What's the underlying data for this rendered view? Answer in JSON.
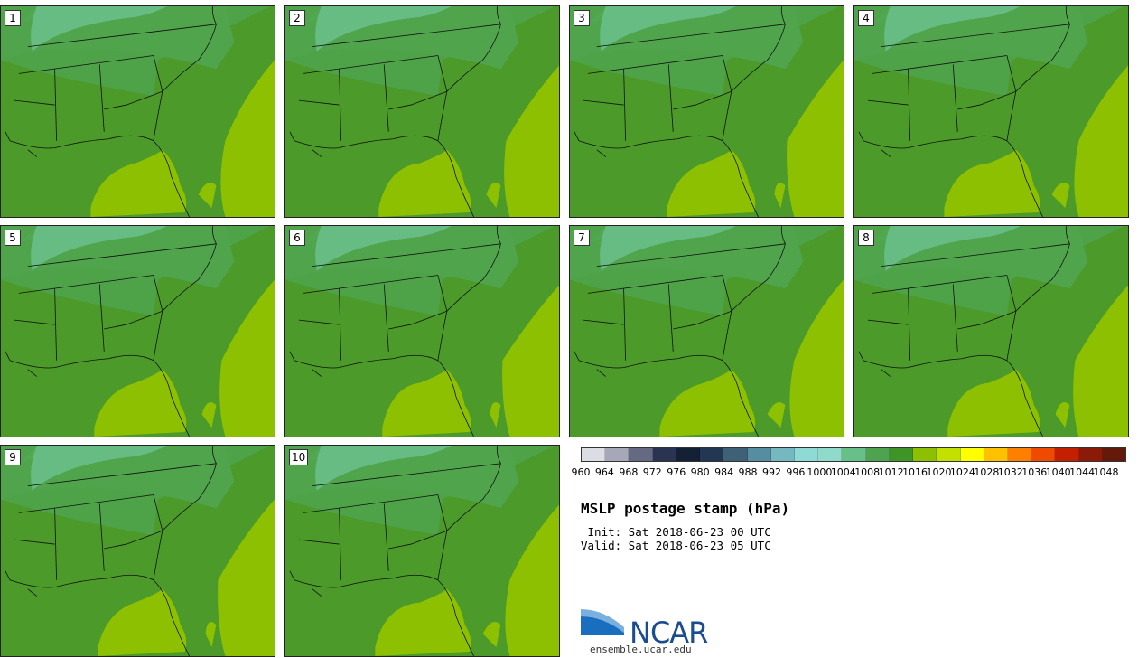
{
  "panels": [
    {
      "label": "1"
    },
    {
      "label": "2"
    },
    {
      "label": "3"
    },
    {
      "label": "4"
    },
    {
      "label": "5"
    },
    {
      "label": "6"
    },
    {
      "label": "7"
    },
    {
      "label": "8"
    },
    {
      "label": "9"
    },
    {
      "label": "10"
    }
  ],
  "legend": {
    "colors": [
      "#dcdde4",
      "#a6a8b8",
      "#656a82",
      "#2a3452",
      "#142035",
      "#223752",
      "#3e6178",
      "#558ea0",
      "#75b8c0",
      "#8fdad4",
      "#8fdacb",
      "#66c088",
      "#4ea250",
      "#3f9428",
      "#8cc000",
      "#c4e000",
      "#ffff00",
      "#ffc000",
      "#ff8000",
      "#ee4a00",
      "#c42000",
      "#8c1a08",
      "#641a0a"
    ],
    "ticks": [
      "960",
      "964",
      "968",
      "972",
      "976",
      "980",
      "984",
      "988",
      "992",
      "996",
      "1000",
      "1004",
      "1008",
      "1012",
      "1016",
      "1020",
      "1024",
      "1028",
      "1032",
      "1036",
      "1040",
      "1044",
      "1048"
    ]
  },
  "map_colors": {
    "sea_low": "#4b9a2a",
    "land_mid": "#4fa44c",
    "north_high": "#66bc82",
    "high_sea": "#8cc000",
    "border": "#111111"
  },
  "title": "MSLP postage stamp (hPa)",
  "init": " Init: Sat 2018-06-23 00 UTC",
  "valid": "Valid: Sat 2018-06-23 05 UTC",
  "logo_text": "NCAR",
  "site": "ensemble.ucar.edu"
}
